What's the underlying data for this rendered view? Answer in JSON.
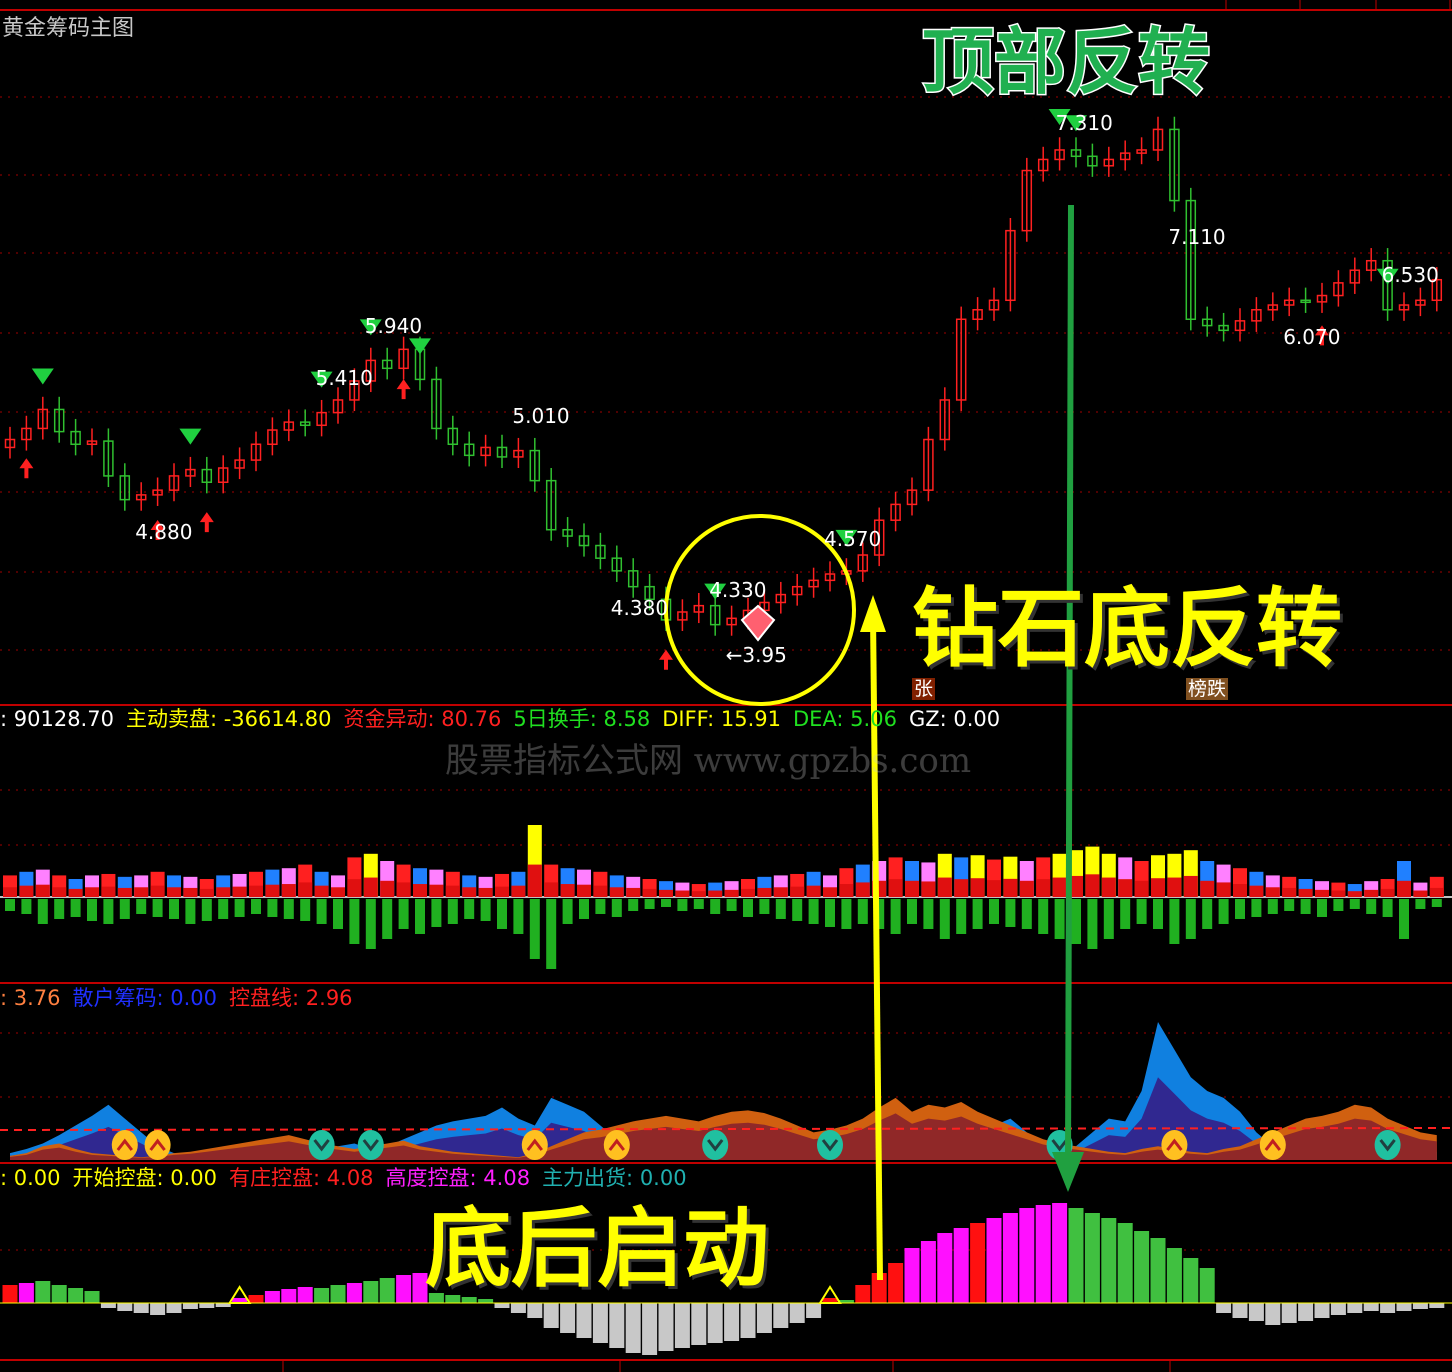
{
  "header": {
    "title": "黄金筹码主图"
  },
  "colors": {
    "up": "#ff2020",
    "down": "#30c030",
    "border": "#c00000",
    "grid": "#a00000",
    "yellow": "#ffff00",
    "green_arrow": "#20a040"
  },
  "annotations": {
    "top_reversal": "顶部反转",
    "diamond_bottom": "钻石底反转",
    "post_bottom_start": "底后启动",
    "tag_rise": "张",
    "tag_fall": "榜跌",
    "watermark": "股票指标公式网 www.gpzbs.com"
  },
  "price_labels": [
    {
      "text": "5.940",
      "idx": 22
    },
    {
      "text": "5.410",
      "idx": 19
    },
    {
      "text": "4.880",
      "idx": 8
    },
    {
      "text": "5.010",
      "idx": 31
    },
    {
      "text": "4.380",
      "idx": 37
    },
    {
      "text": "4.330",
      "idx": 43
    },
    {
      "text": "←3.95",
      "idx": 44
    },
    {
      "text": "4.570",
      "idx": 50
    },
    {
      "text": "7.310",
      "idx": 64
    },
    {
      "text": "7.110",
      "idx": 71
    },
    {
      "text": "6.530",
      "idx": 84
    },
    {
      "text": "6.070",
      "idx": 78
    }
  ],
  "volume_legend": [
    {
      "text": ": 90128.70",
      "color": "#ffffff"
    },
    {
      "text": "主动卖盘: -36614.80",
      "color": "#ffff00"
    },
    {
      "text": "资金异动: 80.76",
      "color": "#ff2020"
    },
    {
      "text": "5日换手: 8.58",
      "color": "#20e020"
    },
    {
      "text": "DIFF: 15.91",
      "color": "#ffff00"
    },
    {
      "text": "DEA: 5.06",
      "color": "#20e020"
    },
    {
      "text": "GZ: 0.00",
      "color": "#ffffff"
    }
  ],
  "chip_legend": [
    {
      "text": ": 3.76",
      "color": "#ff8040"
    },
    {
      "text": "散户筹码: 0.00",
      "color": "#2030ff"
    },
    {
      "text": "控盘线: 2.96",
      "color": "#ff2020"
    }
  ],
  "control_legend": [
    {
      "text": ": 0.00",
      "color": "#ffff00"
    },
    {
      "text": "开始控盘: 0.00",
      "color": "#ffff00"
    },
    {
      "text": "有庄控盘: 4.08",
      "color": "#ff2020"
    },
    {
      "text": "高度控盘: 4.08",
      "color": "#ff20ff"
    },
    {
      "text": "主力出货: 0.00",
      "color": "#20b0b0"
    }
  ],
  "chart_data": [
    {
      "type": "candlestick",
      "title": "黄金筹码主图",
      "ylim": [
        3.85,
        7.75
      ],
      "close": [
        5.33,
        5.4,
        5.52,
        5.38,
        5.3,
        5.32,
        5.1,
        4.95,
        4.98,
        5.01,
        5.1,
        5.14,
        5.06,
        5.15,
        5.2,
        5.3,
        5.39,
        5.44,
        5.42,
        5.5,
        5.58,
        5.7,
        5.83,
        5.78,
        5.9,
        5.71,
        5.4,
        5.3,
        5.23,
        5.28,
        5.22,
        5.26,
        5.07,
        4.76,
        4.72,
        4.66,
        4.58,
        4.5,
        4.4,
        4.32,
        4.19,
        4.24,
        4.28,
        4.16,
        4.2,
        4.25,
        4.3,
        4.35,
        4.4,
        4.44,
        4.48,
        4.5,
        4.6,
        4.82,
        4.92,
        5.01,
        5.33,
        5.58,
        6.09,
        6.15,
        6.21,
        6.65,
        7.03,
        7.1,
        7.16,
        7.12,
        7.06,
        7.1,
        7.14,
        7.16,
        7.29,
        6.84,
        6.09,
        6.05,
        6.02,
        6.08,
        6.15,
        6.18,
        6.21,
        6.2,
        6.24,
        6.32,
        6.4,
        6.46,
        6.15,
        6.18,
        6.21,
        6.34
      ],
      "sell_signals": [
        2,
        11,
        19,
        22,
        25,
        43,
        51,
        64,
        65,
        84
      ],
      "buy_signals": [
        1,
        9,
        12,
        24,
        40,
        80
      ],
      "grid": true
    },
    {
      "type": "bar",
      "name": "volume",
      "up": [
        30,
        35,
        38,
        30,
        25,
        30,
        32,
        28,
        30,
        35,
        30,
        28,
        25,
        30,
        32,
        35,
        38,
        40,
        45,
        35,
        30,
        55,
        60,
        50,
        45,
        40,
        38,
        35,
        30,
        28,
        32,
        35,
        100,
        45,
        40,
        38,
        35,
        30,
        28,
        25,
        22,
        20,
        18,
        20,
        22,
        25,
        28,
        30,
        32,
        35,
        30,
        40,
        45,
        50,
        55,
        50,
        48,
        60,
        55,
        58,
        52,
        56,
        50,
        55,
        60,
        65,
        70,
        60,
        55,
        50,
        58,
        60,
        65,
        50,
        45,
        40,
        35,
        30,
        28,
        25,
        22,
        20,
        18,
        22,
        25,
        50,
        20,
        28
      ],
      "down": [
        12,
        15,
        25,
        20,
        18,
        22,
        25,
        20,
        15,
        18,
        20,
        25,
        22,
        20,
        18,
        15,
        18,
        20,
        22,
        25,
        30,
        45,
        50,
        40,
        30,
        35,
        28,
        25,
        20,
        22,
        30,
        35,
        60,
        70,
        25,
        20,
        15,
        18,
        12,
        10,
        8,
        12,
        10,
        15,
        12,
        18,
        15,
        20,
        22,
        25,
        28,
        30,
        25,
        30,
        35,
        25,
        30,
        40,
        35,
        30,
        25,
        28,
        30,
        35,
        40,
        45,
        50,
        40,
        30,
        25,
        30,
        45,
        40,
        30,
        25,
        20,
        18,
        15,
        12,
        15,
        18,
        12,
        10,
        15,
        18,
        40,
        10,
        8
      ]
    },
    {
      "type": "area",
      "name": "chips",
      "blue": [
        5,
        8,
        12,
        18,
        25,
        32,
        40,
        30,
        20,
        10,
        5,
        3,
        2,
        3,
        5,
        8,
        10,
        12,
        8,
        6,
        10,
        12,
        8,
        10,
        15,
        20,
        25,
        28,
        30,
        32,
        38,
        30,
        25,
        45,
        40,
        35,
        25,
        15,
        10,
        8,
        5,
        4,
        3,
        5,
        6,
        8,
        10,
        12,
        15,
        10,
        8,
        5,
        4,
        5,
        8,
        10,
        20,
        25,
        20,
        28,
        25,
        30,
        20,
        10,
        8,
        10,
        20,
        30,
        28,
        50,
        100,
        80,
        60,
        50,
        45,
        35,
        20,
        10,
        8,
        6,
        5,
        6,
        8,
        10,
        12,
        10,
        8,
        6
      ],
      "brown": [
        3,
        5,
        10,
        12,
        8,
        5,
        4,
        3,
        2,
        3,
        5,
        6,
        8,
        10,
        12,
        14,
        16,
        18,
        15,
        12,
        10,
        8,
        10,
        12,
        14,
        10,
        8,
        6,
        5,
        4,
        3,
        2,
        5,
        10,
        15,
        20,
        22,
        25,
        28,
        30,
        32,
        30,
        28,
        32,
        35,
        36,
        34,
        30,
        25,
        20,
        22,
        25,
        30,
        38,
        45,
        35,
        40,
        38,
        42,
        35,
        30,
        25,
        20,
        15,
        12,
        10,
        8,
        6,
        5,
        8,
        10,
        8,
        6,
        5,
        8,
        10,
        15,
        20,
        25,
        30,
        32,
        35,
        40,
        38,
        30,
        25,
        20,
        18
      ]
    },
    {
      "type": "bar",
      "name": "control",
      "values": [
        18,
        20,
        22,
        18,
        15,
        12,
        -5,
        -8,
        -10,
        -12,
        -10,
        -6,
        -5,
        -4,
        5,
        8,
        12,
        14,
        16,
        15,
        18,
        20,
        22,
        25,
        28,
        30,
        10,
        8,
        6,
        4,
        -5,
        -10,
        -15,
        -25,
        -30,
        -35,
        -40,
        -45,
        -50,
        -52,
        -48,
        -45,
        -42,
        -40,
        -38,
        -35,
        -30,
        -25,
        -20,
        -15,
        5,
        3,
        18,
        30,
        40,
        55,
        62,
        70,
        75,
        80,
        85,
        90,
        95,
        98,
        100,
        95,
        90,
        85,
        80,
        72,
        65,
        55,
        45,
        35,
        -10,
        -15,
        -18,
        -22,
        -20,
        -18,
        -15,
        -12,
        -10,
        -8,
        -10,
        -8,
        -6,
        -5
      ],
      "colors": [
        "r",
        "m",
        "g",
        "g",
        "g",
        "g",
        "s",
        "s",
        "s",
        "s",
        "s",
        "s",
        "s",
        "s",
        "m",
        "r",
        "m",
        "m",
        "m",
        "g",
        "g",
        "m",
        "g",
        "g",
        "m",
        "m",
        "g",
        "g",
        "g",
        "g",
        "s",
        "s",
        "s",
        "s",
        "s",
        "s",
        "s",
        "s",
        "s",
        "s",
        "s",
        "s",
        "s",
        "s",
        "s",
        "s",
        "s",
        "s",
        "s",
        "s",
        "r",
        "g",
        "r",
        "r",
        "r",
        "m",
        "m",
        "m",
        "m",
        "r",
        "m",
        "m",
        "m",
        "m",
        "m",
        "g",
        "g",
        "g",
        "g",
        "g",
        "g",
        "g",
        "g",
        "g",
        "s",
        "s",
        "s",
        "s",
        "s",
        "s",
        "s",
        "s",
        "s",
        "s",
        "s",
        "s",
        "s",
        "s"
      ],
      "markers": [
        14,
        50
      ]
    }
  ],
  "chip_icons": {
    "up": [
      7,
      9,
      32,
      37,
      71,
      77
    ],
    "down": [
      19,
      22,
      43,
      50,
      64,
      84
    ]
  }
}
